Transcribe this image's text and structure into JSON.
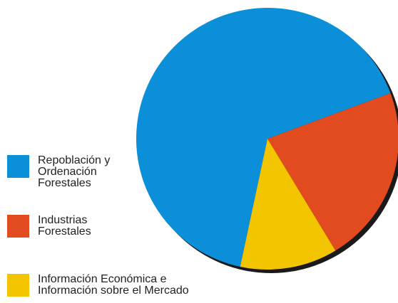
{
  "chart_data": {
    "type": "pie",
    "categories": [
      "Repoblación y Ordenación Forestales",
      "Industrias Forestales",
      "Información Económica e Información sobre el Mercado"
    ],
    "values": [
      66,
      22,
      12
    ],
    "colors": [
      "#0a8fd8",
      "#e24a1f",
      "#f2c500"
    ]
  }
}
